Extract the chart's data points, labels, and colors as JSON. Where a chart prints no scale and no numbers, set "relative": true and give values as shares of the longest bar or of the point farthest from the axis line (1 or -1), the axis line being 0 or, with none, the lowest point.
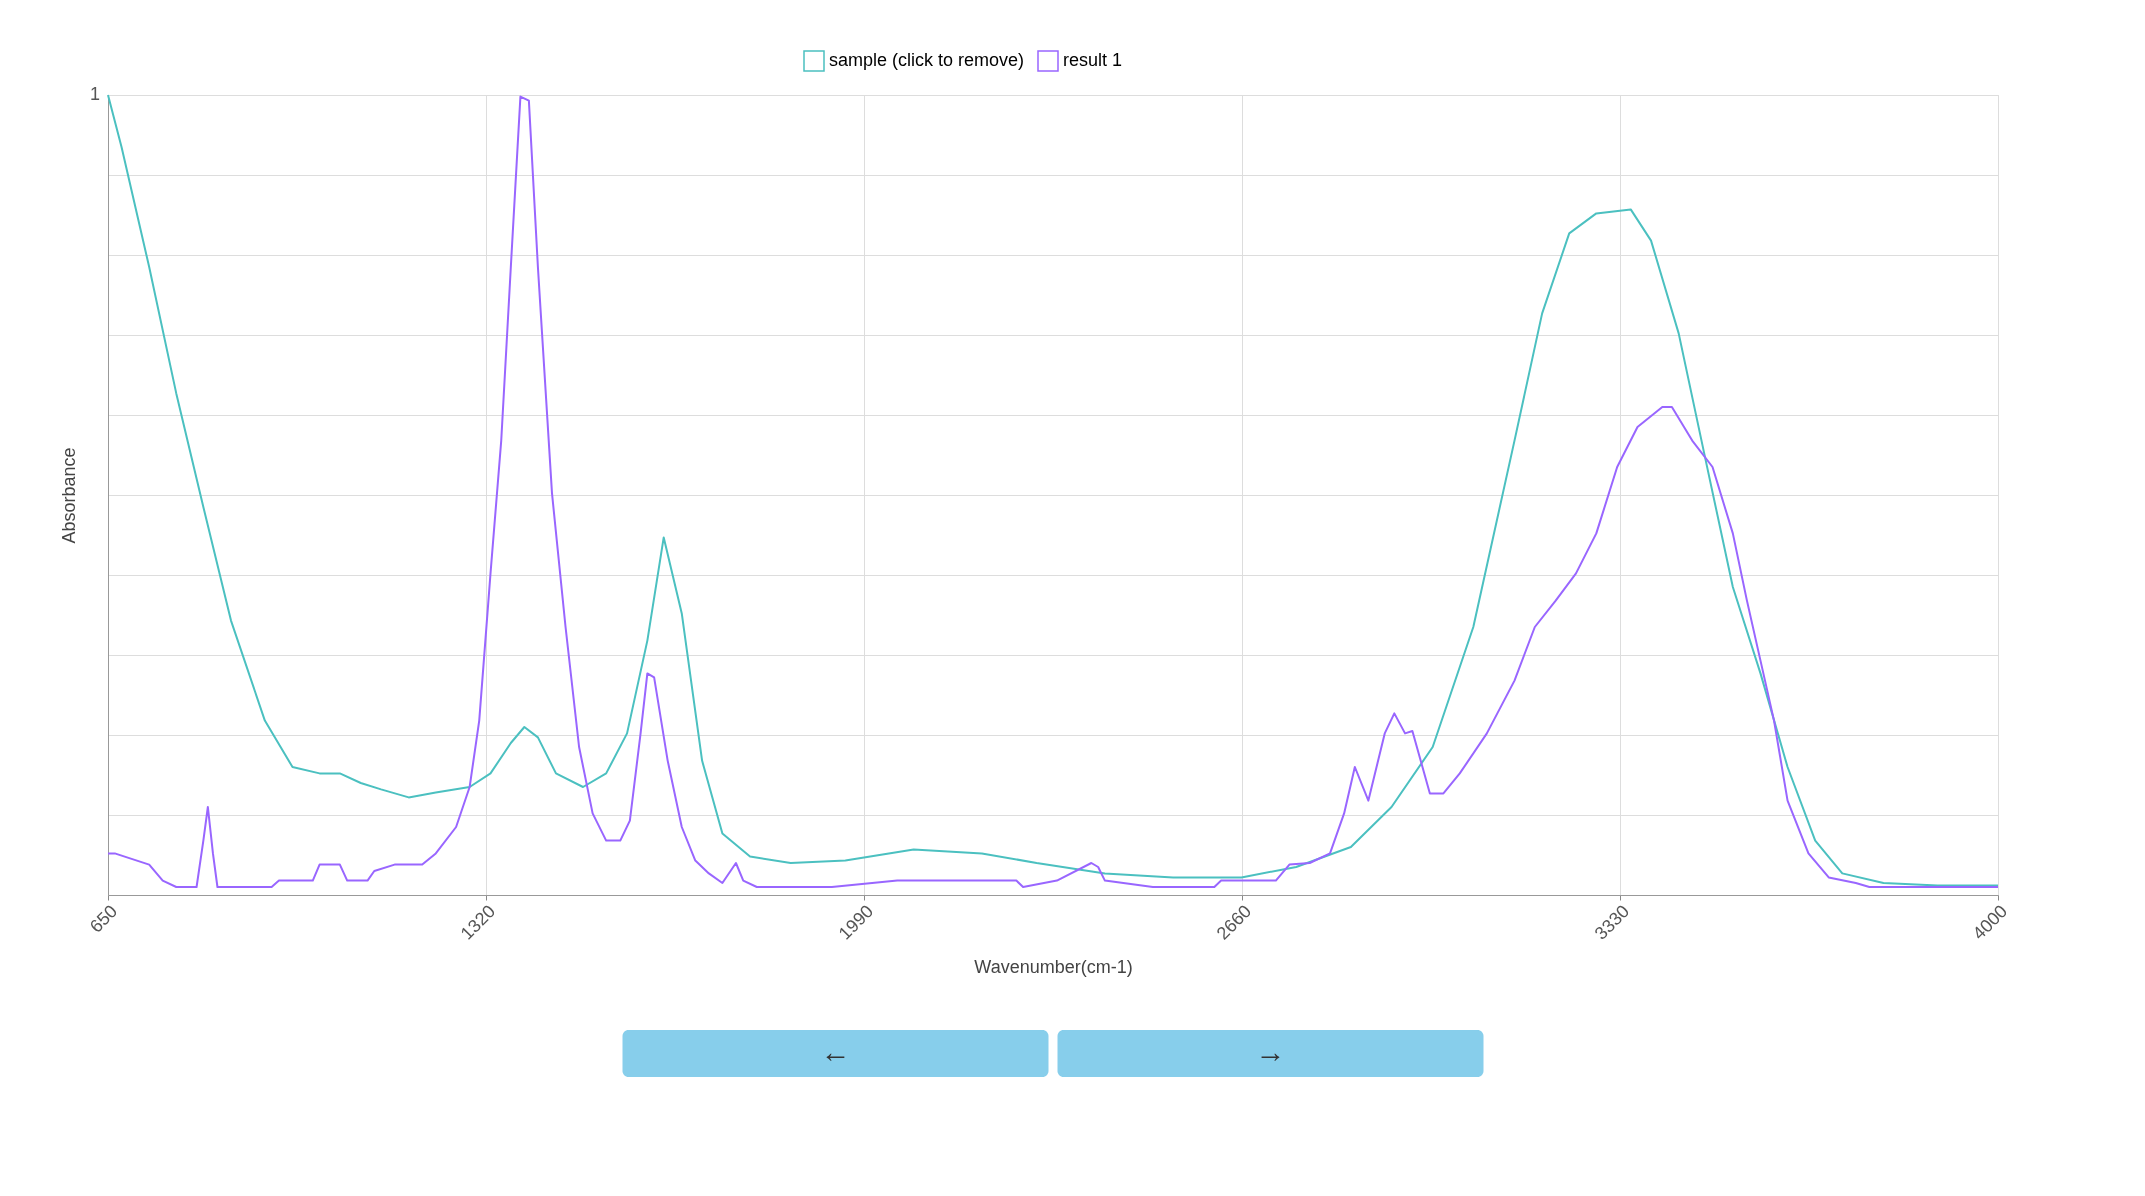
{
  "chart_data": {
    "type": "line",
    "relative": true,
    "xlabel": "Wavenumber(cm-1)",
    "ylabel": "Absorbance",
    "xlim": [
      650,
      4000
    ],
    "xticks": [
      650,
      1320,
      1990,
      2660,
      3330,
      4000
    ],
    "grid": true,
    "legend": "top",
    "marker": "none",
    "line_style": "solid",
    "annotations": [
      "1",
      "←",
      "→"
    ],
    "series": [
      {
        "name": "sample (click to remove)",
        "color": "#4bc0c0",
        "x": [
          650,
          674,
          723,
          771,
          819,
          868,
          928,
          977,
          1025,
          1061,
          1098,
          1134,
          1183,
          1231,
          1291,
          1328,
          1364,
          1388,
          1412,
          1444,
          1492,
          1533,
          1570,
          1606,
          1635,
          1667,
          1703,
          1739,
          1788,
          1860,
          1957,
          2078,
          2199,
          2296,
          2417,
          2538,
          2659,
          2756,
          2853,
          2925,
          2998,
          3070,
          3143,
          3192,
          3240,
          3288,
          3349,
          3385,
          3434,
          3482,
          3530,
          3579,
          3627,
          3676,
          3724,
          3797,
          3893,
          4000
        ],
        "values": [
          1.0,
          0.935,
          0.785,
          0.627,
          0.485,
          0.343,
          0.218,
          0.16,
          0.152,
          0.152,
          0.14,
          0.132,
          0.122,
          0.128,
          0.135,
          0.152,
          0.19,
          0.21,
          0.197,
          0.152,
          0.135,
          0.152,
          0.202,
          0.318,
          0.447,
          0.352,
          0.168,
          0.077,
          0.048,
          0.04,
          0.043,
          0.057,
          0.052,
          0.04,
          0.027,
          0.022,
          0.022,
          0.035,
          0.06,
          0.11,
          0.185,
          0.335,
          0.568,
          0.727,
          0.827,
          0.852,
          0.857,
          0.818,
          0.702,
          0.543,
          0.385,
          0.277,
          0.16,
          0.068,
          0.027,
          0.015,
          0.012,
          0.012
        ]
      },
      {
        "name": "result 1",
        "color": "#9966ff",
        "x": [
          650,
          662,
          723,
          747,
          771,
          807,
          819,
          827,
          836,
          844,
          940,
          953,
          1013,
          1025,
          1061,
          1074,
          1110,
          1122,
          1158,
          1207,
          1231,
          1267,
          1291,
          1308,
          1328,
          1347,
          1364,
          1381,
          1396,
          1412,
          1437,
          1461,
          1485,
          1509,
          1533,
          1558,
          1575,
          1594,
          1606,
          1618,
          1642,
          1667,
          1691,
          1715,
          1739,
          1763,
          1776,
          1800,
          1933,
          2049,
          2260,
          2272,
          2332,
          2393,
          2405,
          2417,
          2502,
          2611,
          2623,
          2720,
          2744,
          2780,
          2816,
          2841,
          2860,
          2884,
          2913,
          2930,
          2949,
          2962,
          2993,
          3017,
          3046,
          3094,
          3143,
          3179,
          3216,
          3252,
          3288,
          3325,
          3361,
          3405,
          3422,
          3458,
          3494,
          3530,
          3555,
          3579,
          3603,
          3627,
          3664,
          3700,
          3748,
          3772,
          4000
        ],
        "values": [
          0.052,
          0.052,
          0.038,
          0.018,
          0.01,
          0.01,
          0.068,
          0.11,
          0.052,
          0.01,
          0.01,
          0.018,
          0.018,
          0.038,
          0.038,
          0.018,
          0.018,
          0.03,
          0.038,
          0.038,
          0.052,
          0.085,
          0.135,
          0.218,
          0.402,
          0.568,
          0.785,
          0.998,
          0.993,
          0.785,
          0.502,
          0.335,
          0.185,
          0.102,
          0.068,
          0.068,
          0.093,
          0.202,
          0.277,
          0.272,
          0.168,
          0.085,
          0.043,
          0.027,
          0.015,
          0.04,
          0.018,
          0.01,
          0.01,
          0.018,
          0.018,
          0.01,
          0.018,
          0.04,
          0.035,
          0.018,
          0.01,
          0.01,
          0.018,
          0.018,
          0.038,
          0.04,
          0.052,
          0.102,
          0.16,
          0.118,
          0.202,
          0.227,
          0.202,
          0.205,
          0.127,
          0.127,
          0.152,
          0.202,
          0.268,
          0.335,
          0.368,
          0.402,
          0.452,
          0.535,
          0.585,
          0.61,
          0.61,
          0.568,
          0.535,
          0.452,
          0.368,
          0.293,
          0.218,
          0.118,
          0.052,
          0.022,
          0.015,
          0.01,
          0.01
        ]
      }
    ]
  }
}
